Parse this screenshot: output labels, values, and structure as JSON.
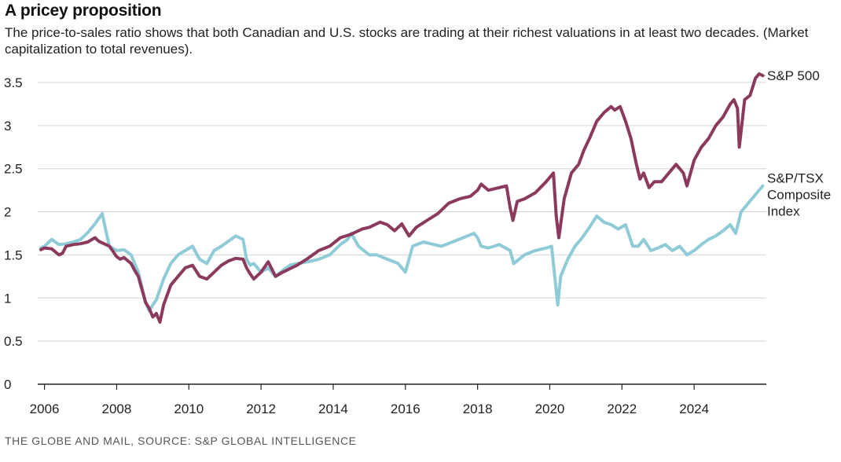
{
  "header": {
    "title": "A pricey proposition",
    "subtitle": "The price-to-sales ratio shows that both Canadian and U.S. stocks are trading at their richest valuations in at least two decades. (Market capitalization to total revenues)."
  },
  "footer": {
    "source": "THE GLOBE AND MAIL, SOURCE: S&P GLOBAL INTELLIGENCE"
  },
  "colors": {
    "sp500": "#8b3a5e",
    "tsx": "#8ecbd6",
    "grid": "#d4d4d4",
    "axis": "#222222"
  },
  "chart_data": {
    "type": "line",
    "title": "A pricey proposition",
    "xlabel": "",
    "ylabel": "",
    "xlim": [
      2005.9,
      2026.0
    ],
    "ylim": [
      0,
      3.6
    ],
    "x_ticks": [
      2006,
      2008,
      2010,
      2012,
      2014,
      2016,
      2018,
      2020,
      2022,
      2024
    ],
    "y_ticks": [
      0,
      0.5,
      1,
      1.5,
      2,
      2.5,
      3,
      3.5
    ],
    "y_tick_labels": [
      "0",
      "0.5",
      "1",
      "1.5",
      "2",
      "2.5",
      "3",
      "3.5"
    ],
    "grid": "horizontal",
    "legend": "direct labels at right end of lines",
    "series": [
      {
        "name": "S&P 500",
        "label_lines": [
          "S&P 500"
        ],
        "color": "#8b3a5e",
        "x": [
          2005.9,
          2006.0,
          2006.2,
          2006.4,
          2006.5,
          2006.6,
          2006.8,
          2007.0,
          2007.2,
          2007.4,
          2007.5,
          2007.7,
          2007.8,
          2008.0,
          2008.1,
          2008.2,
          2008.4,
          2008.5,
          2008.6,
          2008.8,
          2008.9,
          2009.0,
          2009.1,
          2009.2,
          2009.3,
          2009.5,
          2009.7,
          2009.9,
          2010.1,
          2010.3,
          2010.5,
          2010.7,
          2010.9,
          2011.1,
          2011.3,
          2011.5,
          2011.6,
          2011.7,
          2011.8,
          2012.0,
          2012.2,
          2012.4,
          2012.6,
          2012.8,
          2013.0,
          2013.3,
          2013.6,
          2013.9,
          2014.2,
          2014.5,
          2014.8,
          2015.0,
          2015.3,
          2015.5,
          2015.7,
          2015.9,
          2016.1,
          2016.3,
          2016.6,
          2016.9,
          2017.2,
          2017.5,
          2017.8,
          2018.0,
          2018.1,
          2018.3,
          2018.6,
          2018.8,
          2018.9,
          2018.98,
          2019.1,
          2019.3,
          2019.6,
          2019.9,
          2020.1,
          2020.18,
          2020.25,
          2020.4,
          2020.6,
          2020.8,
          2020.95,
          2021.1,
          2021.3,
          2021.5,
          2021.7,
          2021.8,
          2021.95,
          2022.1,
          2022.25,
          2022.4,
          2022.5,
          2022.6,
          2022.75,
          2022.9,
          2023.1,
          2023.3,
          2023.5,
          2023.7,
          2023.8,
          2024.0,
          2024.2,
          2024.4,
          2024.6,
          2024.8,
          2025.0,
          2025.1,
          2025.2,
          2025.25,
          2025.4,
          2025.55,
          2025.7,
          2025.8,
          2025.9
        ],
        "y": [
          1.56,
          1.58,
          1.57,
          1.5,
          1.52,
          1.6,
          1.62,
          1.63,
          1.65,
          1.7,
          1.66,
          1.62,
          1.6,
          1.48,
          1.45,
          1.47,
          1.4,
          1.32,
          1.25,
          0.95,
          0.88,
          0.78,
          0.82,
          0.72,
          0.92,
          1.15,
          1.25,
          1.35,
          1.38,
          1.25,
          1.22,
          1.3,
          1.38,
          1.43,
          1.46,
          1.45,
          1.35,
          1.28,
          1.22,
          1.3,
          1.42,
          1.25,
          1.3,
          1.34,
          1.38,
          1.46,
          1.55,
          1.6,
          1.7,
          1.74,
          1.8,
          1.82,
          1.88,
          1.85,
          1.78,
          1.86,
          1.72,
          1.82,
          1.9,
          1.98,
          2.1,
          2.15,
          2.18,
          2.25,
          2.32,
          2.25,
          2.28,
          2.3,
          2.05,
          1.9,
          2.12,
          2.15,
          2.22,
          2.35,
          2.45,
          1.95,
          1.7,
          2.15,
          2.45,
          2.55,
          2.72,
          2.85,
          3.05,
          3.15,
          3.22,
          3.18,
          3.22,
          3.05,
          2.85,
          2.55,
          2.38,
          2.45,
          2.28,
          2.35,
          2.35,
          2.45,
          2.55,
          2.45,
          2.3,
          2.6,
          2.75,
          2.85,
          3.0,
          3.1,
          3.25,
          3.3,
          3.2,
          2.75,
          3.3,
          3.35,
          3.55,
          3.6,
          3.58
        ]
      },
      {
        "name": "S&P/TSX Composite Index",
        "label_lines": [
          "S&P/TSX",
          "Composite",
          "Index"
        ],
        "color": "#8ecbd6",
        "x": [
          2005.9,
          2006.0,
          2006.2,
          2006.4,
          2006.6,
          2006.8,
          2007.0,
          2007.2,
          2007.4,
          2007.6,
          2007.7,
          2007.8,
          2008.0,
          2008.2,
          2008.4,
          2008.6,
          2008.8,
          2008.9,
          2009.0,
          2009.1,
          2009.3,
          2009.5,
          2009.7,
          2009.9,
          2010.1,
          2010.3,
          2010.5,
          2010.7,
          2010.9,
          2011.1,
          2011.3,
          2011.5,
          2011.6,
          2011.7,
          2011.8,
          2012.0,
          2012.2,
          2012.4,
          2012.6,
          2012.8,
          2013.0,
          2013.3,
          2013.6,
          2013.9,
          2014.2,
          2014.4,
          2014.5,
          2014.7,
          2015.0,
          2015.2,
          2015.5,
          2015.8,
          2016.0,
          2016.2,
          2016.5,
          2016.8,
          2017.0,
          2017.3,
          2017.6,
          2017.9,
          2018.0,
          2018.1,
          2018.3,
          2018.6,
          2018.9,
          2019.0,
          2019.3,
          2019.6,
          2019.9,
          2020.05,
          2020.15,
          2020.22,
          2020.3,
          2020.5,
          2020.7,
          2020.9,
          2021.1,
          2021.3,
          2021.5,
          2021.7,
          2021.9,
          2022.1,
          2022.3,
          2022.45,
          2022.6,
          2022.8,
          2023.0,
          2023.2,
          2023.4,
          2023.6,
          2023.8,
          2024.0,
          2024.2,
          2024.4,
          2024.6,
          2024.8,
          2025.0,
          2025.15,
          2025.3,
          2025.5,
          2025.7,
          2025.9
        ],
        "y": [
          1.58,
          1.6,
          1.68,
          1.62,
          1.63,
          1.65,
          1.68,
          1.76,
          1.86,
          1.98,
          1.78,
          1.6,
          1.55,
          1.56,
          1.5,
          1.3,
          0.95,
          0.85,
          0.92,
          0.98,
          1.22,
          1.4,
          1.5,
          1.55,
          1.6,
          1.45,
          1.4,
          1.55,
          1.6,
          1.66,
          1.72,
          1.68,
          1.45,
          1.38,
          1.4,
          1.3,
          1.35,
          1.25,
          1.32,
          1.38,
          1.4,
          1.42,
          1.45,
          1.5,
          1.62,
          1.68,
          1.75,
          1.6,
          1.5,
          1.5,
          1.45,
          1.4,
          1.3,
          1.6,
          1.65,
          1.62,
          1.6,
          1.65,
          1.7,
          1.75,
          1.7,
          1.6,
          1.58,
          1.62,
          1.55,
          1.4,
          1.5,
          1.55,
          1.58,
          1.6,
          1.2,
          0.92,
          1.25,
          1.45,
          1.6,
          1.7,
          1.82,
          1.95,
          1.88,
          1.85,
          1.8,
          1.85,
          1.6,
          1.6,
          1.68,
          1.55,
          1.58,
          1.62,
          1.55,
          1.6,
          1.5,
          1.55,
          1.62,
          1.68,
          1.72,
          1.78,
          1.85,
          1.75,
          2.0,
          2.1,
          2.2,
          2.3
        ]
      }
    ]
  }
}
